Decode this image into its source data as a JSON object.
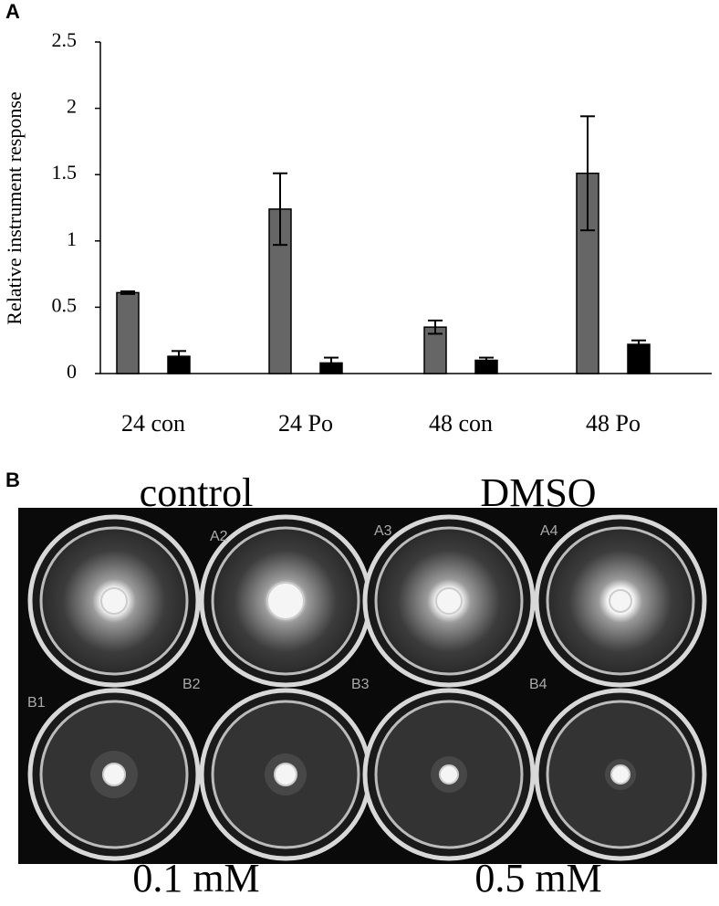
{
  "panel_a": {
    "label": "A",
    "chart_data": {
      "type": "bar",
      "y_label": "Relative instrument response",
      "categories": [
        "24 con",
        "24 Po",
        "48 con",
        "48 Po"
      ],
      "series": [
        {
          "color": "#666666",
          "values": [
            0.61,
            1.24,
            0.35,
            1.51
          ],
          "errors": [
            0.01,
            0.27,
            0.05,
            0.43
          ]
        },
        {
          "color": "#000000",
          "values": [
            0.13,
            0.08,
            0.1,
            0.22
          ],
          "errors": [
            0.04,
            0.04,
            0.02,
            0.03
          ]
        }
      ],
      "ylim": [
        0,
        2.5
      ],
      "yticks": [
        0,
        0.5,
        1,
        1.5,
        2,
        2.5
      ],
      "grid": false
    }
  },
  "panel_b": {
    "label": "B",
    "top_labels": [
      "control",
      "DMSO"
    ],
    "bottom_labels": [
      "0.1 mM",
      "0.5 mM"
    ],
    "well_labels": [
      "A2",
      "A3",
      "A4",
      "B1",
      "B2",
      "B3",
      "B4"
    ]
  }
}
